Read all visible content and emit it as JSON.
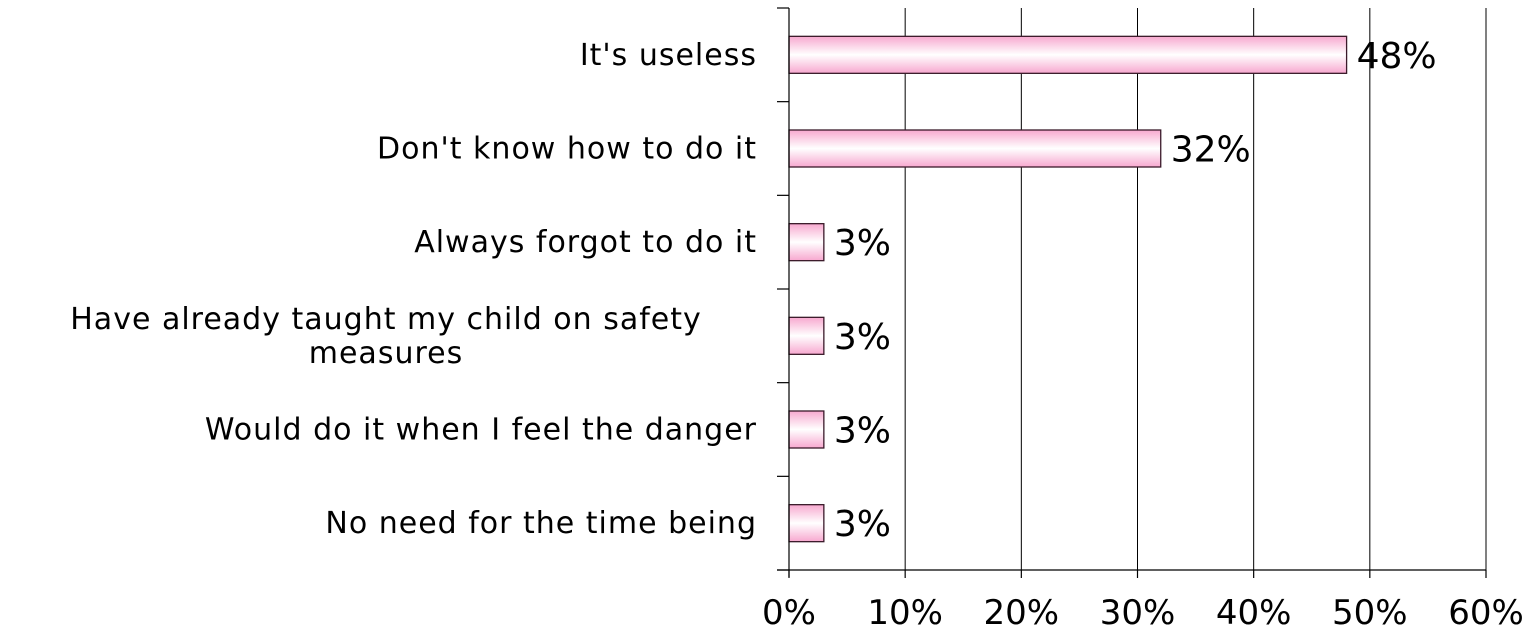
{
  "chart_data": {
    "type": "bar",
    "orientation": "horizontal",
    "categories": [
      "It's useless",
      "Don't know how to do it",
      "Always forgot to do it",
      "Have already taught my child on safety measures",
      "Would do it when I feel the danger",
      "No need for the time being"
    ],
    "category_lines": [
      [
        "It's useless"
      ],
      [
        "Don't know how to do it"
      ],
      [
        "Always forgot to do it"
      ],
      [
        "Have already taught my child on safety",
        "measures"
      ],
      [
        "Would do it when I feel the danger"
      ],
      [
        "No need for the time being"
      ]
    ],
    "values": [
      48,
      32,
      3,
      3,
      3,
      3
    ],
    "data_labels": [
      "48%",
      "32%",
      "3%",
      "3%",
      "3%",
      "3%"
    ],
    "xlim": [
      0,
      60
    ],
    "xticks": [
      0,
      10,
      20,
      30,
      40,
      50,
      60
    ],
    "xtick_labels": [
      "0%",
      "10%",
      "20%",
      "30%",
      "40%",
      "50%",
      "60%"
    ],
    "grid": "vertical",
    "legend": "none",
    "title": "",
    "xlabel": "",
    "ylabel": "",
    "colors": {
      "bar_fill_edge": "#f7a8cf",
      "bar_fill_center": "#ffffff",
      "bar_stroke": "#3a1a2a",
      "grid": "#000000",
      "axis": "#000000"
    }
  }
}
